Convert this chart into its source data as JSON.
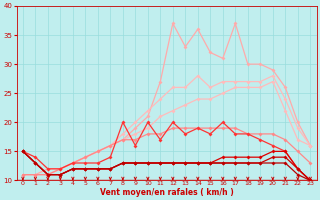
{
  "x": [
    0,
    1,
    2,
    3,
    4,
    5,
    6,
    7,
    8,
    9,
    10,
    11,
    12,
    13,
    14,
    15,
    16,
    17,
    18,
    19,
    20,
    21,
    22,
    23
  ],
  "series": [
    {
      "color": "#ffaaaa",
      "values": [
        11,
        11,
        12,
        12,
        13,
        14,
        15,
        16,
        17,
        19,
        21,
        27,
        37,
        33,
        36,
        32,
        31,
        37,
        30,
        30,
        29,
        26,
        20,
        16
      ],
      "marker": "D",
      "markersize": 2.0,
      "lw": 0.9
    },
    {
      "color": "#ffbbbb",
      "values": [
        11,
        11,
        11,
        12,
        13,
        14,
        15,
        16,
        18,
        20,
        22,
        24,
        26,
        26,
        28,
        26,
        27,
        27,
        27,
        27,
        28,
        24,
        19,
        16
      ],
      "marker": "D",
      "markersize": 2.0,
      "lw": 0.9
    },
    {
      "color": "#ffbbbb",
      "values": [
        11,
        11,
        11,
        12,
        13,
        14,
        15,
        16,
        17,
        18,
        19,
        21,
        22,
        23,
        24,
        24,
        25,
        26,
        26,
        26,
        27,
        22,
        17,
        16
      ],
      "marker": "D",
      "markersize": 2.0,
      "lw": 0.9
    },
    {
      "color": "#ff8888",
      "values": [
        11,
        11,
        11,
        12,
        13,
        14,
        15,
        16,
        17,
        17,
        18,
        18,
        19,
        19,
        19,
        19,
        19,
        19,
        18,
        18,
        18,
        17,
        15,
        13
      ],
      "marker": "D",
      "markersize": 2.0,
      "lw": 0.9
    },
    {
      "color": "#ff3333",
      "values": [
        15,
        14,
        12,
        12,
        13,
        13,
        13,
        14,
        20,
        16,
        20,
        17,
        20,
        18,
        19,
        18,
        20,
        18,
        18,
        17,
        16,
        15,
        12,
        10
      ],
      "marker": "D",
      "markersize": 2.0,
      "lw": 0.9
    },
    {
      "color": "#dd0000",
      "values": [
        15,
        13,
        11,
        11,
        12,
        12,
        12,
        12,
        13,
        13,
        13,
        13,
        13,
        13,
        13,
        13,
        14,
        14,
        14,
        14,
        15,
        15,
        12,
        10
      ],
      "marker": "D",
      "markersize": 2.0,
      "lw": 0.9
    },
    {
      "color": "#cc0000",
      "values": [
        15,
        13,
        11,
        11,
        12,
        12,
        12,
        12,
        13,
        13,
        13,
        13,
        13,
        13,
        13,
        13,
        13,
        13,
        13,
        13,
        14,
        14,
        12,
        10
      ],
      "marker": "D",
      "markersize": 2.0,
      "lw": 0.9
    },
    {
      "color": "#bb0000",
      "values": [
        15,
        13,
        11,
        11,
        12,
        12,
        12,
        12,
        13,
        13,
        13,
        13,
        13,
        13,
        13,
        13,
        13,
        13,
        13,
        13,
        13,
        13,
        11,
        10
      ],
      "marker": "D",
      "markersize": 2.0,
      "lw": 0.9
    }
  ],
  "xlabel": "Vent moyen/en rafales ( km/h )",
  "xlim_min": -0.5,
  "xlim_max": 23.5,
  "ylim": [
    10,
    40
  ],
  "yticks": [
    10,
    15,
    20,
    25,
    30,
    35,
    40
  ],
  "xticks": [
    0,
    1,
    2,
    3,
    4,
    5,
    6,
    7,
    8,
    9,
    10,
    11,
    12,
    13,
    14,
    15,
    16,
    17,
    18,
    19,
    20,
    21,
    22,
    23
  ],
  "bg_color": "#c0eeee",
  "grid_color": "#99dddd",
  "axis_color": "#cc0000",
  "text_color": "#cc0000"
}
